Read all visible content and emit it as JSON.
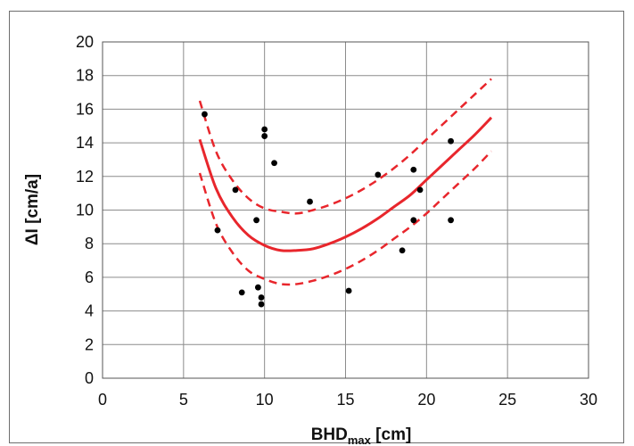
{
  "chart_data": {
    "type": "scatter",
    "xlabel": {
      "main": "BHD",
      "subscript": "max",
      "unit": " [cm]"
    },
    "ylabel": "ΔI [cm/a]",
    "xlim": [
      0,
      30
    ],
    "ylim": [
      0,
      20
    ],
    "x_ticks": [
      "0",
      "5",
      "10",
      "15",
      "20",
      "25",
      "30"
    ],
    "y_ticks": [
      "0",
      "2",
      "4",
      "6",
      "8",
      "10",
      "12",
      "14",
      "16",
      "18",
      "20"
    ],
    "grid": true,
    "legend": "none",
    "points": [
      {
        "x": 6.3,
        "y": 15.7
      },
      {
        "x": 7.1,
        "y": 8.8
      },
      {
        "x": 8.2,
        "y": 11.2
      },
      {
        "x": 8.6,
        "y": 5.1
      },
      {
        "x": 9.5,
        "y": 9.4
      },
      {
        "x": 9.6,
        "y": 5.4
      },
      {
        "x": 9.8,
        "y": 4.8
      },
      {
        "x": 9.8,
        "y": 4.4
      },
      {
        "x": 10.0,
        "y": 14.8
      },
      {
        "x": 10.0,
        "y": 14.4
      },
      {
        "x": 10.6,
        "y": 12.8
      },
      {
        "x": 12.8,
        "y": 10.5
      },
      {
        "x": 15.2,
        "y": 5.2
      },
      {
        "x": 17.0,
        "y": 12.1
      },
      {
        "x": 18.5,
        "y": 7.6
      },
      {
        "x": 19.2,
        "y": 12.4
      },
      {
        "x": 19.2,
        "y": 9.4
      },
      {
        "x": 19.6,
        "y": 11.2
      },
      {
        "x": 21.5,
        "y": 14.1
      },
      {
        "x": 21.5,
        "y": 9.4
      }
    ],
    "curves": [
      {
        "style": "solid",
        "x": [
          6,
          7,
          8,
          9,
          10,
          11,
          12,
          13,
          14,
          15,
          16,
          17,
          18,
          19,
          20,
          21,
          22,
          23,
          24
        ],
        "y": [
          14.2,
          11.3,
          9.6,
          8.5,
          7.9,
          7.6,
          7.6,
          7.7,
          8.0,
          8.4,
          8.9,
          9.5,
          10.2,
          10.9,
          11.8,
          12.7,
          13.6,
          14.5,
          15.5
        ]
      },
      {
        "style": "dashed",
        "x": [
          6,
          7,
          8,
          9,
          10,
          11,
          12,
          13,
          14,
          15,
          16,
          17,
          18,
          19,
          20,
          21,
          22,
          23,
          24
        ],
        "y": [
          16.5,
          13.5,
          11.8,
          10.7,
          10.1,
          9.9,
          9.8,
          10.0,
          10.3,
          10.7,
          11.2,
          11.8,
          12.5,
          13.3,
          14.2,
          15.1,
          16.0,
          16.9,
          17.8
        ]
      },
      {
        "style": "dashed",
        "x": [
          6,
          7,
          8,
          9,
          10,
          11,
          12,
          13,
          14,
          15,
          16,
          17,
          18,
          19,
          20,
          21,
          22,
          23,
          24
        ],
        "y": [
          12.2,
          9.2,
          7.5,
          6.4,
          5.9,
          5.6,
          5.6,
          5.8,
          6.1,
          6.5,
          7.0,
          7.6,
          8.3,
          9.0,
          9.8,
          10.7,
          11.6,
          12.5,
          13.5
        ]
      }
    ],
    "colors": {
      "curve": "#e8262c",
      "point": "#000000",
      "grid": "#8c8c8c"
    }
  }
}
